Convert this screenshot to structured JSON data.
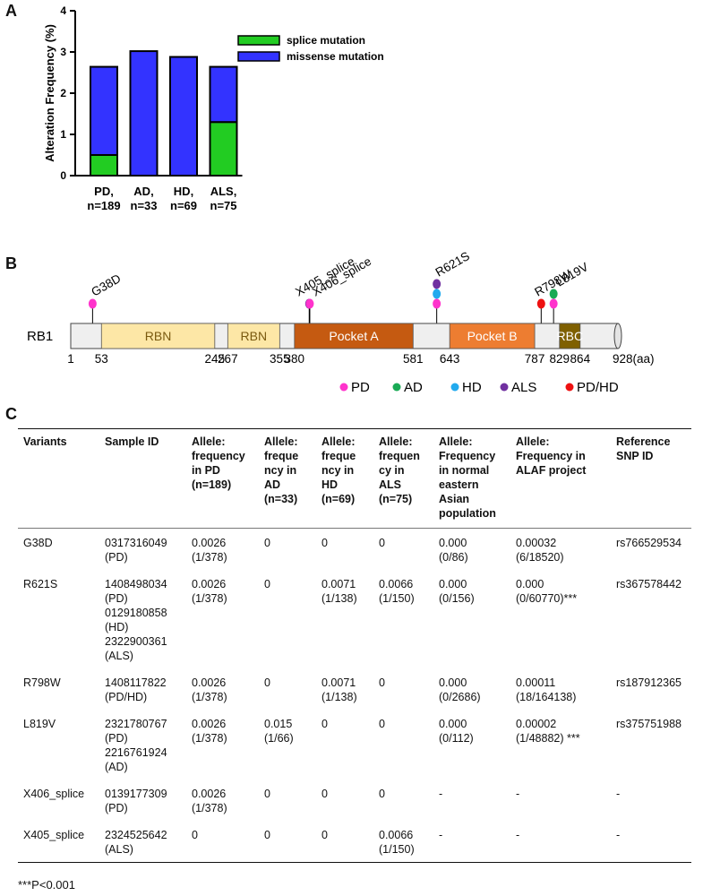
{
  "panels": {
    "a": "A",
    "b": "B",
    "c": "C"
  },
  "chart_data": {
    "type": "bar",
    "stacked": true,
    "ylabel": "Alteration Frequency (%)",
    "ylim": [
      0,
      4
    ],
    "yticks": [
      "0",
      "1",
      "2",
      "3",
      "4"
    ],
    "categories": [
      [
        "PD,",
        "n=189"
      ],
      [
        "AD,",
        "n=33"
      ],
      [
        "HD,",
        "n=69"
      ],
      [
        "ALS,",
        "n=75"
      ]
    ],
    "series": [
      {
        "name": "splice mutation",
        "color": "#22cc22",
        "values": [
          0.5,
          0,
          0,
          1.3
        ]
      },
      {
        "name": "missense mutation",
        "color": "#3333ff",
        "values": [
          2.14,
          3.02,
          2.88,
          1.34
        ]
      }
    ],
    "legend_position": "top-right",
    "grid": false
  },
  "domain_figure": {
    "protein": "RB1",
    "length_max": 928,
    "unit_suffix": "928(aa)",
    "domains": [
      {
        "name": "RBN",
        "start": 53,
        "end": 245,
        "color": "#fde7a6",
        "text_color": "#7a5a10"
      },
      {
        "name": "RBN",
        "start": 267,
        "end": 355,
        "color": "#fde7a6",
        "text_color": "#7a5a10"
      },
      {
        "name": "Pocket A",
        "start": 380,
        "end": 581,
        "color": "#c55a11",
        "text_color": "#ffffff"
      },
      {
        "name": "Pocket B",
        "start": 643,
        "end": 787,
        "color": "#ed7d31",
        "text_color": "#ffffff"
      },
      {
        "name": "RBC",
        "start": 829,
        "end": 864,
        "color": "#7f6000",
        "text_color": "#ffffff"
      }
    ],
    "position_labels": [
      {
        "pos": 1,
        "text": "1"
      },
      {
        "pos": 53,
        "text": "53"
      },
      {
        "pos": 245,
        "text": "245"
      },
      {
        "pos": 267,
        "text": "267"
      },
      {
        "pos": 355,
        "text": "355"
      },
      {
        "pos": 380,
        "text": "380"
      },
      {
        "pos": 581,
        "text": "581"
      },
      {
        "pos": 643,
        "text": "643"
      },
      {
        "pos": 787,
        "text": "787"
      },
      {
        "pos": 829,
        "text": "829"
      },
      {
        "pos": 864,
        "text": "864"
      }
    ],
    "variants": [
      {
        "label": "G38D",
        "pos": 38,
        "dots": [
          "PD"
        ]
      },
      {
        "label": "X405_splice",
        "pos": 405,
        "dots": [
          "ALS"
        ]
      },
      {
        "label": "X406_splice",
        "pos": 406,
        "dots": [
          "PD"
        ]
      },
      {
        "label": "R621S",
        "pos": 621,
        "dots": [
          "PD",
          "HD",
          "ALS"
        ]
      },
      {
        "label": "R798W",
        "pos": 798,
        "dots": [
          "PD/HD"
        ]
      },
      {
        "label": "L819V",
        "pos": 819,
        "dots": [
          "PD",
          "AD"
        ]
      }
    ],
    "legend": [
      {
        "key": "PD",
        "color": "#ff33cc"
      },
      {
        "key": "AD",
        "color": "#1aaa55"
      },
      {
        "key": "HD",
        "color": "#22aaee"
      },
      {
        "key": "ALS",
        "color": "#7030a0"
      },
      {
        "key": "PD/HD",
        "color": "#ee1111"
      }
    ]
  },
  "table": {
    "headers": [
      [
        "Variants"
      ],
      [
        "Sample ID"
      ],
      [
        "Allele:",
        "frequency",
        "in      PD",
        "(n=189)"
      ],
      [
        "Allele:",
        "freque",
        "ncy     in",
        "AD",
        "(n=33)"
      ],
      [
        "Allele:",
        "freque",
        "ncy     in",
        "HD",
        "(n=69)"
      ],
      [
        "Allele:",
        "frequen",
        "cy       in",
        "ALS",
        "(n=75)"
      ],
      [
        "Allele:",
        "Frequency",
        "in   normal",
        "eastern",
        "Asian",
        "population"
      ],
      [
        "Allele:",
        "Frequency    in",
        "ALAF project"
      ],
      [
        "Reference",
        "SNP ID"
      ]
    ],
    "rows": [
      [
        [
          "G38D"
        ],
        [
          "0317316049",
          "(PD)"
        ],
        [
          "0.0026",
          "(1/378)"
        ],
        [
          "0"
        ],
        [
          "0"
        ],
        [
          "0"
        ],
        [
          "0.000",
          "(0/86)"
        ],
        [
          "0.00032",
          "(6/18520)"
        ],
        [
          "rs766529534"
        ]
      ],
      [
        [
          "R621S"
        ],
        [
          "1408498034",
          "(PD)",
          "0129180858",
          "(HD)",
          "2322900361",
          "(ALS)"
        ],
        [
          "0.0026",
          "(1/378)"
        ],
        [
          "0"
        ],
        [
          "0.0071",
          "(1/138)"
        ],
        [
          "0.0066",
          "(1/150)"
        ],
        [
          "0.000",
          "(0/156)"
        ],
        [
          "0.000",
          "(0/60770)***"
        ],
        [
          "rs367578442"
        ]
      ],
      [
        [
          "R798W"
        ],
        [
          "1408117822",
          "(PD/HD)"
        ],
        [
          "0.0026",
          "(1/378)"
        ],
        [
          "0"
        ],
        [
          "0.0071",
          "(1/138)"
        ],
        [
          "0"
        ],
        [
          "0.000",
          "(0/2686)"
        ],
        [
          "0.00011",
          "(18/164138)"
        ],
        [
          "rs187912365"
        ]
      ],
      [
        [
          "L819V"
        ],
        [
          "2321780767",
          "(PD)",
          "2216761924",
          "(AD)"
        ],
        [
          "0.0026",
          "(1/378)"
        ],
        [
          "0.015",
          "(1/66)"
        ],
        [
          "0"
        ],
        [
          "0"
        ],
        [
          "0.000",
          "(0/112)"
        ],
        [
          "0.00002",
          "(1/48882) ***"
        ],
        [
          "rs375751988"
        ]
      ],
      [
        [
          "X406_splice"
        ],
        [
          "0139177309",
          "(PD)"
        ],
        [
          "0.0026",
          "(1/378)"
        ],
        [
          "0"
        ],
        [
          "0"
        ],
        [
          "0"
        ],
        [
          "-"
        ],
        [
          "-"
        ],
        [
          "-"
        ]
      ],
      [
        [
          "X405_splice"
        ],
        [
          "2324525642",
          "(ALS)"
        ],
        [
          "0"
        ],
        [
          "0"
        ],
        [
          "0"
        ],
        [
          "0.0066",
          "(1/150)"
        ],
        [
          "-"
        ],
        [
          "-"
        ],
        [
          "-"
        ]
      ]
    ],
    "footnote": "***P<0.001"
  }
}
